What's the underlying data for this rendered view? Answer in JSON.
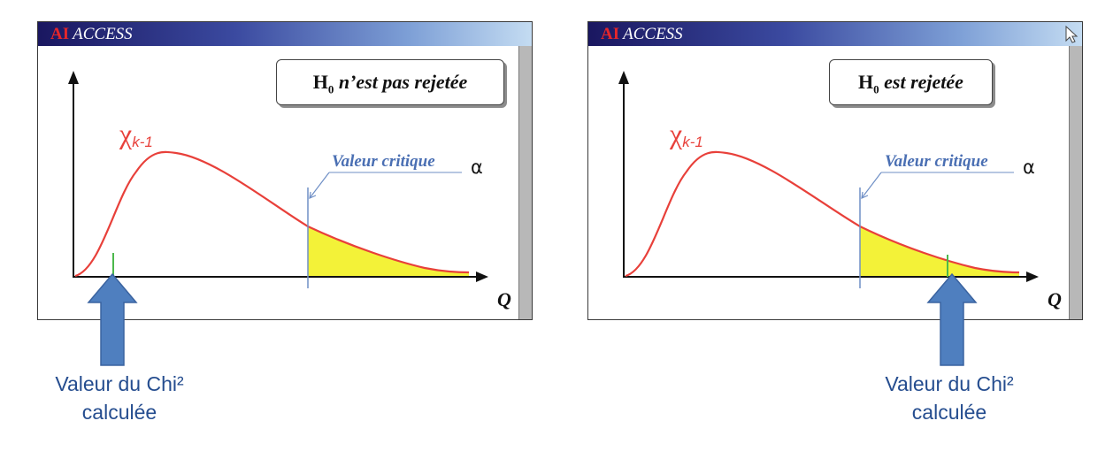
{
  "panels": [
    {
      "brand_prefix": "AI",
      "brand_name": "ACCESS",
      "hypothesis_h": "H",
      "hypothesis_sub": "0",
      "hypothesis_text": " n’est pas rejetée",
      "distribution_label": "χ",
      "distribution_sub": "k-1",
      "critical_label": "Valeur critique",
      "alpha_label": "α",
      "axis_label": "Q",
      "caption_line1": "Valeur du Chi²",
      "caption_line2": "calculée"
    },
    {
      "brand_prefix": "AI",
      "brand_name": "ACCESS",
      "hypothesis_h": "H",
      "hypothesis_sub": "0",
      "hypothesis_text": " est rejetée",
      "distribution_label": "χ",
      "distribution_sub": "k-1",
      "critical_label": "Valeur critique",
      "alpha_label": "α",
      "axis_label": "Q",
      "caption_line1": "Valeur du Chi²",
      "caption_line2": "calculée"
    }
  ],
  "colors": {
    "curve": "#e8403a",
    "rejection_area": "#f3f238",
    "critical_line": "#6f8fc6",
    "observed_marker": "#4cb84c",
    "arrow": "#4f7fbf",
    "caption": "#254d8f"
  }
}
